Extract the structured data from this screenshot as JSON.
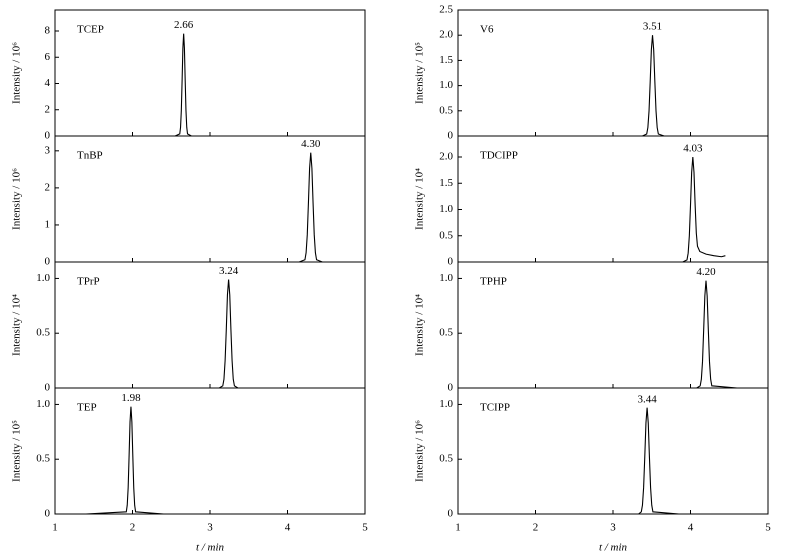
{
  "chart_data": [
    {
      "type": "line",
      "ylabel": "Intensity / 10⁶",
      "xlim": [
        1,
        5
      ],
      "xticks": [
        1,
        2,
        3,
        4,
        5
      ],
      "xtick_labels": false,
      "ylim": [
        0,
        9.6
      ],
      "yticks": [
        0,
        2,
        4,
        6,
        8
      ],
      "x": [
        2.55,
        2.61,
        2.62,
        2.63,
        2.64,
        2.65,
        2.66,
        2.67,
        2.68,
        2.69,
        2.7,
        2.71,
        2.76
      ],
      "series": [
        {
          "name": "TCEP",
          "color": "#000000",
          "values": [
            0,
            0.16,
            0.66,
            1.94,
            4.21,
            6.68,
            7.8,
            6.68,
            4.21,
            1.94,
            0.66,
            0.16,
            0
          ]
        }
      ],
      "annotations": [
        {
          "x": 2.66,
          "label": "2.66"
        }
      ]
    },
    {
      "type": "line",
      "ylabel": "Intensity / 10⁶",
      "xlim": [
        1,
        5
      ],
      "xticks": [
        1,
        2,
        3,
        4,
        5
      ],
      "xtick_labels": false,
      "ylim": [
        0,
        3.4
      ],
      "yticks": [
        0,
        1,
        2,
        3
      ],
      "x": [
        4.15,
        4.225,
        4.24,
        4.255,
        4.27,
        4.285,
        4.3,
        4.315,
        4.33,
        4.345,
        4.36,
        4.375,
        4.45
      ],
      "series": [
        {
          "name": "TnBP",
          "color": "#000000",
          "values": [
            0,
            0.06,
            0.25,
            0.73,
            1.59,
            2.53,
            2.95,
            2.53,
            1.59,
            0.73,
            0.25,
            0.06,
            0
          ]
        }
      ],
      "annotations": [
        {
          "x": 4.3,
          "label": "4.30"
        }
      ]
    },
    {
      "type": "line",
      "ylabel": "Intensity / 10⁴",
      "xlim": [
        1,
        5
      ],
      "xticks": [
        1,
        2,
        3,
        4,
        5
      ],
      "xtick_labels": false,
      "ylim": [
        0,
        1.15
      ],
      "yticks": [
        0,
        0.5,
        {
          "value": 1,
          "label": "1.0"
        }
      ],
      "x": [
        3.12,
        3.165,
        3.18,
        3.195,
        3.21,
        3.225,
        3.24,
        3.255,
        3.27,
        3.285,
        3.3,
        3.315,
        3.36
      ],
      "series": [
        {
          "name": "TPrP",
          "color": "#000000",
          "values": [
            0,
            0.02,
            0.08,
            0.25,
            0.53,
            0.85,
            0.99,
            0.85,
            0.53,
            0.25,
            0.08,
            0.02,
            0
          ]
        }
      ],
      "annotations": [
        {
          "x": 3.24,
          "label": "3.24"
        }
      ]
    },
    {
      "type": "line",
      "ylabel": "Intensity / 10⁵",
      "xlabel": "t / min",
      "xlim": [
        1,
        5
      ],
      "xticks": [
        1,
        2,
        3,
        4,
        5
      ],
      "xtick_labels": true,
      "ylim": [
        0,
        1.15
      ],
      "yticks": [
        0,
        0.5,
        {
          "value": 1,
          "label": "1.0"
        }
      ],
      "x": [
        1.4,
        1.92,
        1.932,
        1.944,
        1.956,
        1.968,
        1.98,
        1.992,
        2.004,
        2.016,
        2.028,
        2.04,
        2.4
      ],
      "series": [
        {
          "name": "TEP",
          "color": "#000000",
          "values": [
            0,
            0.02,
            0.08,
            0.24,
            0.53,
            0.84,
            0.98,
            0.84,
            0.53,
            0.24,
            0.08,
            0.02,
            0
          ]
        }
      ],
      "annotations": [
        {
          "x": 1.98,
          "label": "1.98"
        }
      ]
    },
    {
      "type": "line",
      "ylabel": "Intensity / 10⁵",
      "xlim": [
        1,
        5
      ],
      "xticks": [
        1,
        2,
        3,
        4,
        5
      ],
      "xtick_labels": false,
      "ylim": [
        0,
        2.5
      ],
      "yticks": [
        0,
        0.5,
        {
          "value": 1,
          "label": "1.0"
        },
        1.5,
        {
          "value": 2,
          "label": "2.0"
        },
        2.5
      ],
      "x": [
        3.38,
        3.435,
        3.45,
        3.465,
        3.48,
        3.495,
        3.51,
        3.525,
        3.54,
        3.555,
        3.57,
        3.585,
        3.66
      ],
      "series": [
        {
          "name": "V6",
          "color": "#000000",
          "values": [
            0,
            0.04,
            0.17,
            0.5,
            1.08,
            1.71,
            2.0,
            1.71,
            1.08,
            0.5,
            0.17,
            0.04,
            0
          ]
        }
      ],
      "annotations": [
        {
          "x": 3.51,
          "label": "3.51"
        }
      ]
    },
    {
      "type": "line",
      "ylabel": "Intensity / 10⁴",
      "xlim": [
        1,
        5
      ],
      "xticks": [
        1,
        2,
        3,
        4,
        5
      ],
      "xtick_labels": false,
      "ylim": [
        0,
        2.4
      ],
      "yticks": [
        0,
        0.5,
        {
          "value": 1,
          "label": "1.0"
        },
        1.5,
        {
          "value": 2,
          "label": "2.0"
        }
      ],
      "x": [
        3.9,
        3.955,
        3.97,
        3.985,
        4.0,
        4.015,
        4.03,
        4.045,
        4.06,
        4.075,
        4.09,
        4.12,
        4.2,
        4.3,
        4.4,
        4.45
      ],
      "series": [
        {
          "name": "TDCIPP",
          "color": "#000000",
          "values": [
            0,
            0.04,
            0.17,
            0.5,
            1.08,
            1.71,
            2.0,
            1.71,
            1.08,
            0.55,
            0.3,
            0.2,
            0.15,
            0.12,
            0.1,
            0.12
          ]
        }
      ],
      "annotations": [
        {
          "x": 4.03,
          "label": "4.03"
        }
      ]
    },
    {
      "type": "line",
      "ylabel": "Intensity / 10⁴",
      "xlim": [
        1,
        5
      ],
      "xticks": [
        1,
        2,
        3,
        4,
        5
      ],
      "xtick_labels": false,
      "ylim": [
        0,
        1.15
      ],
      "yticks": [
        0,
        0.5,
        {
          "value": 1,
          "label": "1.0"
        }
      ],
      "x": [
        4.08,
        4.125,
        4.14,
        4.155,
        4.17,
        4.185,
        4.2,
        4.215,
        4.23,
        4.245,
        4.26,
        4.275,
        4.6
      ],
      "series": [
        {
          "name": "TPHP",
          "color": "#000000",
          "values": [
            0,
            0.02,
            0.08,
            0.24,
            0.53,
            0.84,
            0.98,
            0.84,
            0.53,
            0.24,
            0.08,
            0.02,
            0
          ]
        }
      ],
      "annotations": [
        {
          "x": 4.2,
          "label": "4.20"
        }
      ]
    },
    {
      "type": "line",
      "ylabel": "Intensity / 10⁶",
      "xlabel": "t / min",
      "xlim": [
        1,
        5
      ],
      "xticks": [
        1,
        2,
        3,
        4,
        5
      ],
      "xtick_labels": true,
      "ylim": [
        0,
        1.15
      ],
      "yticks": [
        0,
        0.5,
        {
          "value": 1,
          "label": "1.0"
        }
      ],
      "x": [
        3.33,
        3.365,
        3.38,
        3.395,
        3.41,
        3.425,
        3.44,
        3.455,
        3.47,
        3.485,
        3.5,
        3.515,
        3.85
      ],
      "series": [
        {
          "name": "TCIPP",
          "color": "#000000",
          "values": [
            0,
            0.02,
            0.08,
            0.24,
            0.52,
            0.83,
            0.97,
            0.83,
            0.52,
            0.24,
            0.08,
            0.02,
            0
          ]
        }
      ],
      "annotations": [
        {
          "x": 3.44,
          "label": "3.44"
        }
      ]
    }
  ]
}
